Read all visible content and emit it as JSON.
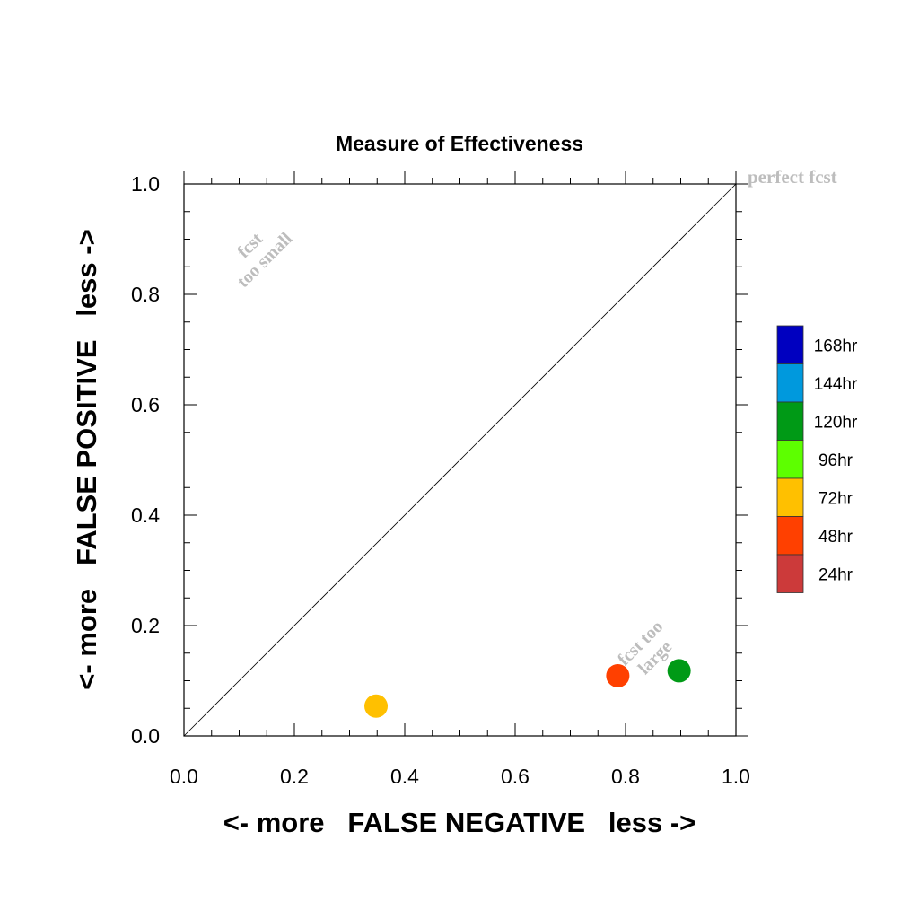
{
  "chart_data": {
    "type": "scatter",
    "title": "Measure of Effectiveness",
    "xlabel": "<- more   FALSE NEGATIVE   less ->",
    "ylabel": "<- more   FALSE POSITIVE   less ->",
    "xlim": [
      0.0,
      1.0
    ],
    "ylim": [
      0.0,
      1.0
    ],
    "x_ticks": [
      "0.0",
      "0.2",
      "0.4",
      "0.6",
      "0.8",
      "1.0"
    ],
    "y_ticks": [
      "0.0",
      "0.2",
      "0.4",
      "0.6",
      "0.8",
      "1.0"
    ],
    "grid": false,
    "diagonal_line": true,
    "annotations": {
      "perfect": "perfect fcst",
      "small_line1": "fcst",
      "small_line2": "too small",
      "large_line1": "fcst too",
      "large_line2": "large"
    },
    "legend": [
      {
        "label": "168hr",
        "color": "#0000c0"
      },
      {
        "label": "144hr",
        "color": "#0099dd"
      },
      {
        "label": "120hr",
        "color": "#009a16"
      },
      {
        "label": "96hr",
        "color": "#5dff00"
      },
      {
        "label": "72hr",
        "color": "#ffc000"
      },
      {
        "label": "48hr",
        "color": "#ff4000"
      },
      {
        "label": "24hr",
        "color": "#cc3a3a"
      }
    ],
    "legend_placement": "right",
    "points": [
      {
        "x": 0.348,
        "y": 0.054,
        "color": "#ffc000"
      },
      {
        "x": 0.786,
        "y": 0.109,
        "color": "#ff4000"
      },
      {
        "x": 0.897,
        "y": 0.118,
        "color": "#009a16"
      }
    ]
  }
}
